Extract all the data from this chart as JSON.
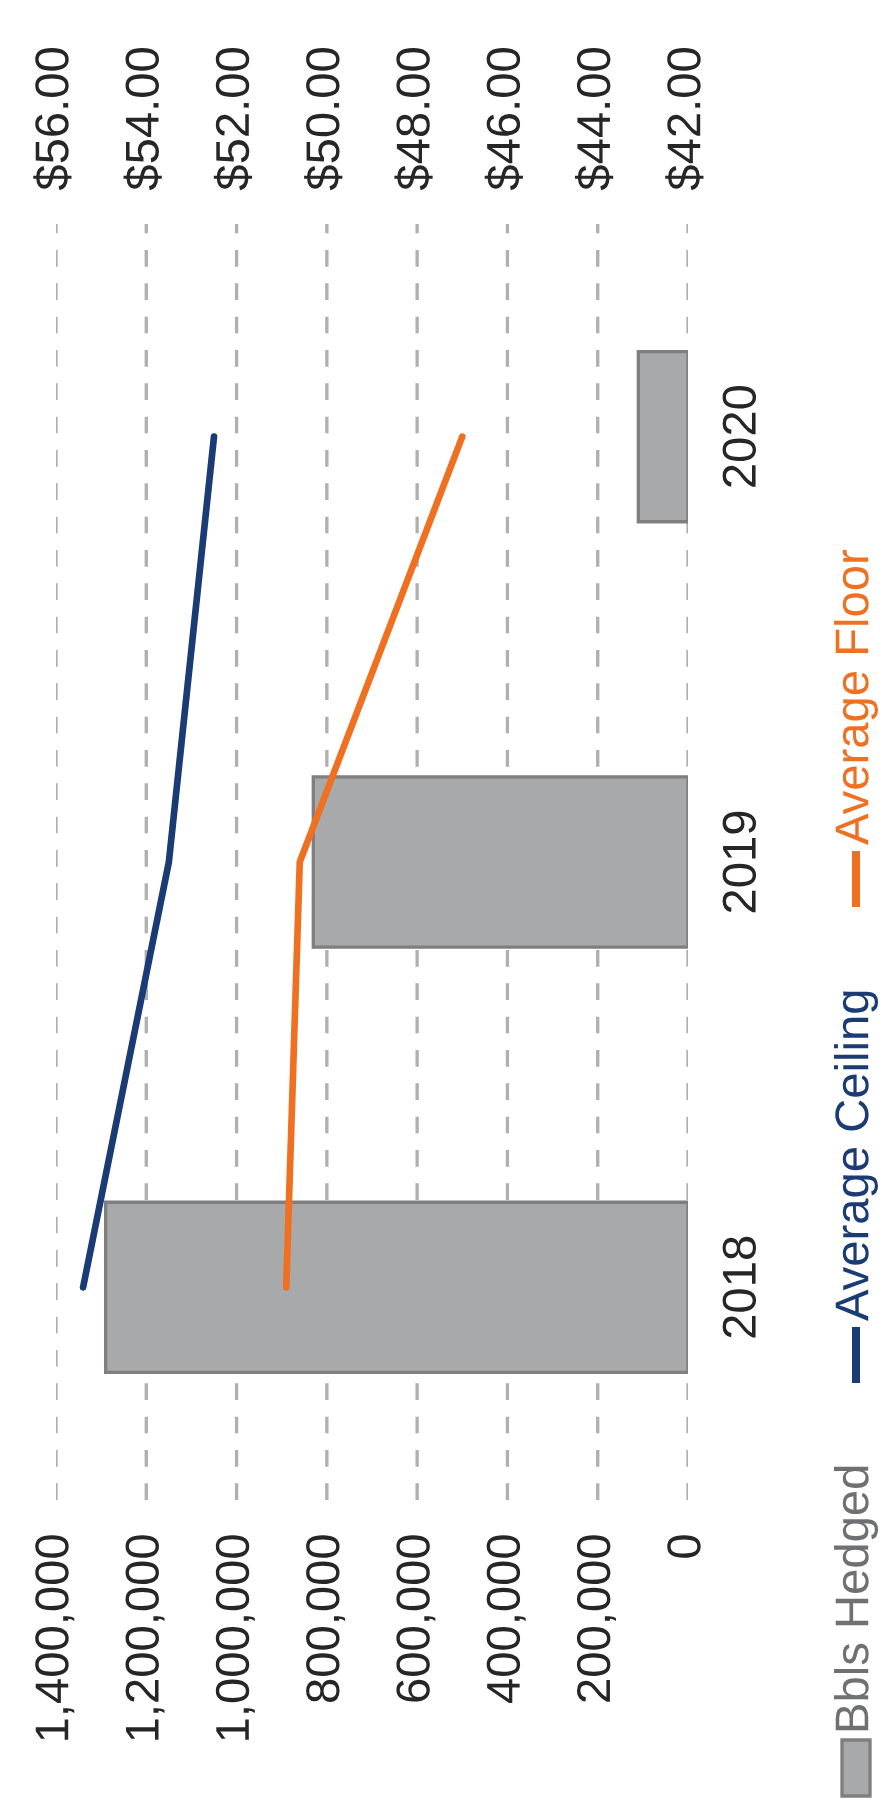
{
  "chart_data": {
    "type": "bar",
    "orientation": "horizontal",
    "categories": [
      "2020",
      "2019",
      "2018"
    ],
    "series": [
      {
        "name": "Bbls Hedged",
        "color": "#a7a9aa",
        "values": [
          110000,
          830000,
          1290000
        ]
      },
      {
        "name": "Average Ceiling",
        "type": "line",
        "axis": "x2",
        "color": "#1a3b73",
        "values": [
          52.5,
          53.5,
          55.4
        ]
      },
      {
        "name": "Average Floor",
        "type": "line",
        "axis": "x2",
        "color": "#f07022",
        "values": [
          47.0,
          50.6,
          50.9
        ]
      }
    ],
    "xlim": [
      1400000,
      0
    ],
    "xticks": [
      {
        "value": 1400000,
        "label": "1,400,000"
      },
      {
        "value": 1200000,
        "label": "1,200,000"
      },
      {
        "value": 1000000,
        "label": "1,000,000"
      },
      {
        "value": 800000,
        "label": "800,000"
      },
      {
        "value": 600000,
        "label": "600,000"
      },
      {
        "value": 400000,
        "label": "400,000"
      },
      {
        "value": 200000,
        "label": "200,000"
      },
      0
    ],
    "x2lim": [
      56,
      42
    ],
    "x2ticks": [
      {
        "value": 56,
        "label": "$56.00"
      },
      {
        "value": 54,
        "label": "$54.00"
      },
      {
        "value": 52,
        "label": "$52.00"
      },
      {
        "value": 50,
        "label": "$50.00"
      },
      {
        "value": 48,
        "label": "$48.00"
      },
      {
        "value": 46,
        "label": "$46.00"
      },
      {
        "value": 44,
        "label": "$44.00"
      },
      {
        "value": 42,
        "label": "$42.00"
      }
    ],
    "grid": "x",
    "line_style": "solid",
    "legend": "right"
  }
}
